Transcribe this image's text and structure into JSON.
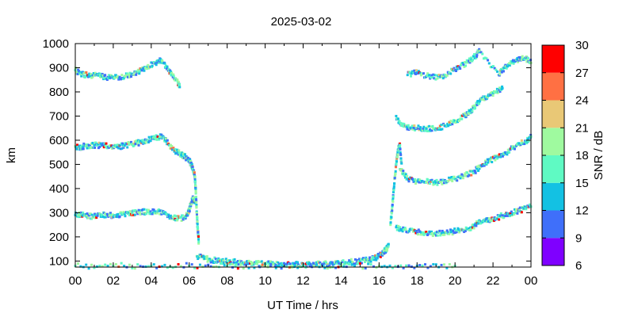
{
  "chart_data": {
    "type": "scatter",
    "title": "2025-03-02",
    "xlabel": "UT Time / hrs",
    "ylabel": "km",
    "xlim": [
      0,
      24
    ],
    "ylim": [
      75,
      1000
    ],
    "x_ticks": [
      "00",
      "02",
      "04",
      "06",
      "08",
      "10",
      "12",
      "14",
      "16",
      "18",
      "20",
      "22",
      "00"
    ],
    "y_ticks": [
      100,
      200,
      300,
      400,
      500,
      600,
      700,
      800,
      900,
      1000
    ],
    "grid": false,
    "colorbar": {
      "label": "SNR / dB",
      "range": [
        6,
        30
      ],
      "ticks": [
        6,
        9,
        12,
        15,
        18,
        21,
        24,
        27,
        30
      ],
      "colors": [
        "#7f00ff",
        "#3f6ffa",
        "#13c1e3",
        "#5ffac3",
        "#9ffa9f",
        "#e9c876",
        "#ff7043",
        "#ff0000"
      ]
    },
    "series": [
      {
        "points": [
          [
            0.0,
            290
          ],
          [
            0.3,
            292
          ],
          [
            0.6,
            288
          ],
          [
            1.0,
            285
          ],
          [
            1.4,
            290
          ],
          [
            1.8,
            288
          ],
          [
            2.2,
            292
          ],
          [
            2.6,
            295
          ],
          [
            3.0,
            298
          ],
          [
            3.4,
            302
          ],
          [
            3.8,
            305
          ],
          [
            4.2,
            305
          ],
          [
            4.6,
            300
          ],
          [
            5.0,
            285
          ],
          [
            5.4,
            275
          ],
          [
            5.8,
            280
          ],
          [
            6.0,
            310
          ],
          [
            6.1,
            340
          ],
          [
            6.2,
            360
          ],
          [
            6.3,
            340
          ]
        ]
      },
      {
        "points": [
          [
            0.0,
            575
          ],
          [
            0.3,
            572
          ],
          [
            0.6,
            578
          ],
          [
            1.0,
            580
          ],
          [
            1.4,
            578
          ],
          [
            1.8,
            575
          ],
          [
            2.2,
            572
          ],
          [
            2.6,
            578
          ],
          [
            3.0,
            585
          ],
          [
            3.4,
            590
          ],
          [
            3.8,
            600
          ],
          [
            4.2,
            610
          ],
          [
            4.5,
            615
          ],
          [
            4.8,
            595
          ],
          [
            5.2,
            560
          ],
          [
            5.5,
            545
          ],
          [
            5.8,
            530
          ],
          [
            6.0,
            520
          ],
          [
            6.1,
            500
          ],
          [
            6.2,
            480
          ],
          [
            6.3,
            450
          ],
          [
            6.35,
            380
          ],
          [
            6.4,
            300
          ],
          [
            6.45,
            230
          ],
          [
            6.5,
            180
          ]
        ]
      },
      {
        "points": [
          [
            0.0,
            890
          ],
          [
            0.3,
            875
          ],
          [
            0.6,
            870
          ],
          [
            1.0,
            868
          ],
          [
            1.4,
            865
          ],
          [
            1.8,
            860
          ],
          [
            2.2,
            860
          ],
          [
            2.6,
            865
          ],
          [
            3.0,
            875
          ],
          [
            3.4,
            885
          ],
          [
            3.8,
            905
          ],
          [
            4.2,
            920
          ],
          [
            4.5,
            935
          ],
          [
            4.8,
            905
          ],
          [
            5.1,
            870
          ],
          [
            5.4,
            840
          ],
          [
            5.5,
            820
          ]
        ]
      },
      {
        "points": [
          [
            6.4,
            120
          ],
          [
            6.8,
            110
          ],
          [
            7.2,
            105
          ],
          [
            7.6,
            100
          ],
          [
            8.0,
            98
          ],
          [
            8.5,
            95
          ],
          [
            9.0,
            92
          ],
          [
            9.5,
            90
          ],
          [
            10.0,
            88
          ],
          [
            10.5,
            87
          ],
          [
            11.0,
            86
          ],
          [
            11.5,
            85
          ],
          [
            12.0,
            85
          ],
          [
            12.5,
            86
          ],
          [
            13.0,
            88
          ],
          [
            13.5,
            90
          ],
          [
            14.0,
            92
          ],
          [
            14.5,
            96
          ],
          [
            15.0,
            100
          ],
          [
            15.4,
            105
          ],
          [
            15.7,
            110
          ],
          [
            16.0,
            120
          ],
          [
            16.2,
            135
          ],
          [
            16.4,
            150
          ],
          [
            16.5,
            170
          ]
        ]
      },
      {
        "points": [
          [
            16.6,
            250
          ],
          [
            16.7,
            330
          ],
          [
            16.8,
            420
          ],
          [
            16.9,
            500
          ],
          [
            17.0,
            560
          ],
          [
            17.1,
            580
          ],
          [
            17.2,
            480
          ]
        ]
      },
      {
        "points": [
          [
            16.9,
            240
          ],
          [
            17.3,
            230
          ],
          [
            17.8,
            222
          ],
          [
            18.3,
            218
          ],
          [
            18.8,
            215
          ],
          [
            19.3,
            215
          ],
          [
            19.8,
            220
          ],
          [
            20.3,
            228
          ],
          [
            20.8,
            238
          ],
          [
            21.2,
            255
          ],
          [
            21.6,
            265
          ],
          [
            22.0,
            275
          ],
          [
            22.4,
            285
          ],
          [
            22.8,
            295
          ],
          [
            23.2,
            305
          ],
          [
            23.6,
            315
          ],
          [
            24.0,
            325
          ]
        ]
      },
      {
        "points": [
          [
            17.1,
            480
          ],
          [
            17.5,
            440
          ],
          [
            18.0,
            430
          ],
          [
            18.5,
            428
          ],
          [
            19.0,
            425
          ],
          [
            19.5,
            430
          ],
          [
            20.0,
            440
          ],
          [
            20.5,
            455
          ],
          [
            21.0,
            470
          ],
          [
            21.4,
            495
          ],
          [
            21.8,
            515
          ],
          [
            22.2,
            530
          ],
          [
            22.6,
            545
          ],
          [
            23.0,
            565
          ],
          [
            23.4,
            585
          ],
          [
            23.8,
            600
          ],
          [
            24.0,
            615
          ]
        ]
      },
      {
        "points": [
          [
            16.9,
            700
          ],
          [
            17.2,
            660
          ],
          [
            17.6,
            652
          ],
          [
            18.0,
            650
          ],
          [
            18.5,
            648
          ],
          [
            19.0,
            648
          ],
          [
            19.5,
            660
          ],
          [
            20.0,
            680
          ],
          [
            20.5,
            700
          ],
          [
            20.8,
            720
          ],
          [
            21.1,
            745
          ],
          [
            21.4,
            770
          ],
          [
            21.8,
            785
          ],
          [
            22.2,
            800
          ],
          [
            22.5,
            815
          ]
        ]
      },
      {
        "points": [
          [
            17.5,
            870
          ],
          [
            18.0,
            880
          ],
          [
            18.6,
            865
          ],
          [
            19.2,
            860
          ],
          [
            19.7,
            880
          ],
          [
            20.2,
            900
          ],
          [
            20.7,
            925
          ],
          [
            21.1,
            950
          ],
          [
            21.3,
            970
          ],
          [
            22.3,
            870
          ],
          [
            22.6,
            900
          ],
          [
            23.0,
            920
          ],
          [
            23.4,
            935
          ],
          [
            23.7,
            940
          ],
          [
            24.0,
            920
          ]
        ]
      },
      {
        "points": [
          [
            0.0,
            80
          ],
          [
            2.0,
            80
          ],
          [
            4.0,
            80
          ],
          [
            6.0,
            80
          ],
          [
            8.0,
            80
          ],
          [
            10.0,
            80
          ],
          [
            12.0,
            80
          ],
          [
            14.0,
            80
          ],
          [
            16.0,
            80
          ],
          [
            18.0,
            80
          ],
          [
            20.0,
            80
          ]
        ]
      }
    ]
  }
}
